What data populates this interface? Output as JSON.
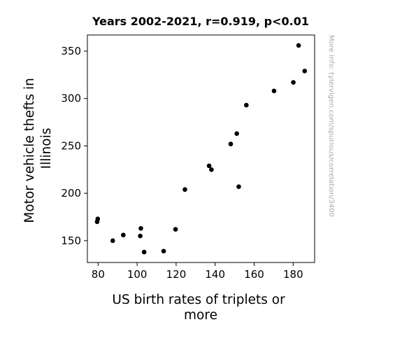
{
  "chart_data": {
    "type": "scatter",
    "title": "Years 2002-2021, r=0.919, p<0.01",
    "xlabel": [
      "US birth rates of triplets or",
      "more"
    ],
    "ylabel": [
      "Motor vehicle thefts in",
      "Illinois"
    ],
    "xlim": [
      74.5,
      191
    ],
    "ylim": [
      127,
      367
    ],
    "xticks": [
      80,
      100,
      120,
      140,
      160,
      180
    ],
    "yticks": [
      150,
      200,
      250,
      300,
      350
    ],
    "grid": false,
    "marker_color": "#000000",
    "points": [
      {
        "x": 79.5,
        "y": 170
      },
      {
        "x": 79.8,
        "y": 173
      },
      {
        "x": 87.5,
        "y": 150
      },
      {
        "x": 92.9,
        "y": 156
      },
      {
        "x": 101.6,
        "y": 155
      },
      {
        "x": 101.9,
        "y": 163
      },
      {
        "x": 103.6,
        "y": 138
      },
      {
        "x": 113.6,
        "y": 139
      },
      {
        "x": 119.7,
        "y": 162
      },
      {
        "x": 124.5,
        "y": 204
      },
      {
        "x": 136.9,
        "y": 229
      },
      {
        "x": 138.1,
        "y": 225
      },
      {
        "x": 148.0,
        "y": 252
      },
      {
        "x": 151.1,
        "y": 263
      },
      {
        "x": 152.1,
        "y": 207
      },
      {
        "x": 156.0,
        "y": 293
      },
      {
        "x": 170.2,
        "y": 308
      },
      {
        "x": 180.1,
        "y": 317
      },
      {
        "x": 182.8,
        "y": 356
      },
      {
        "x": 185.9,
        "y": 329
      }
    ]
  },
  "side_note": "More info: tylervigen.com/spurious/correlation/3400"
}
